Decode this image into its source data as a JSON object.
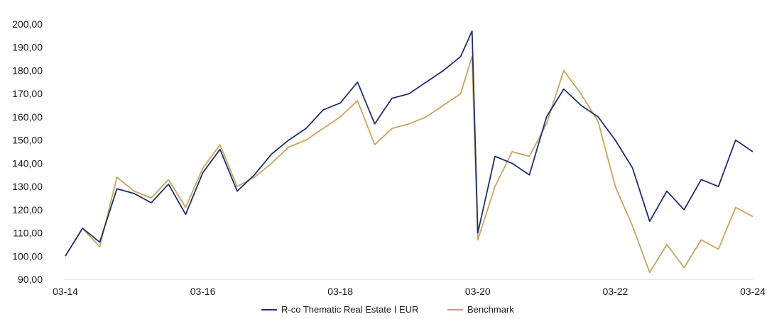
{
  "chart_data": {
    "type": "line",
    "title": "",
    "xlabel": "",
    "ylabel": "",
    "x_ticks": [
      "03-14",
      "03-16",
      "03-18",
      "03-20",
      "03-22",
      "03-24"
    ],
    "y_ticks": [
      "90,00",
      "100,00",
      "110,00",
      "120,00",
      "130,00",
      "140,00",
      "150,00",
      "160,00",
      "170,00",
      "180,00",
      "190,00",
      "200,00"
    ],
    "ylim": [
      90,
      200
    ],
    "xlim": [
      "2014-03",
      "2024-03"
    ],
    "grid": false,
    "legend_position": "bottom-center",
    "x": [
      "2014-03",
      "2014-06",
      "2014-09",
      "2014-12",
      "2015-03",
      "2015-06",
      "2015-09",
      "2015-12",
      "2016-03",
      "2016-06",
      "2016-09",
      "2016-12",
      "2017-03",
      "2017-06",
      "2017-09",
      "2017-12",
      "2018-03",
      "2018-06",
      "2018-09",
      "2018-12",
      "2019-03",
      "2019-06",
      "2019-09",
      "2019-12",
      "2020-02",
      "2020-03",
      "2020-06",
      "2020-09",
      "2020-12",
      "2021-03",
      "2021-06",
      "2021-09",
      "2021-12",
      "2022-03",
      "2022-06",
      "2022-09",
      "2022-12",
      "2023-03",
      "2023-06",
      "2023-09",
      "2023-12",
      "2024-03"
    ],
    "series": [
      {
        "name": "R-co Thematic Real Estate I EUR",
        "color": "#1f2f6e",
        "values": [
          100,
          112,
          106,
          129,
          127,
          123,
          131,
          118,
          136,
          146,
          128,
          135,
          144,
          150,
          155,
          163,
          166,
          175,
          157,
          168,
          170,
          175,
          180,
          186,
          197,
          110,
          143,
          140,
          135,
          160,
          172,
          165,
          160,
          150,
          138,
          115,
          128,
          120,
          133,
          130,
          150,
          145
        ]
      },
      {
        "name": "Benchmark",
        "color": "#c9a45f",
        "values": [
          100,
          112,
          104,
          134,
          128,
          125,
          133,
          121,
          138,
          148,
          130,
          134,
          140,
          147,
          150,
          155,
          160,
          167,
          148,
          155,
          157,
          160,
          165,
          170,
          186,
          107,
          130,
          145,
          143,
          157,
          180,
          170,
          158,
          130,
          113,
          93,
          105,
          95,
          107,
          103,
          121,
          117
        ]
      }
    ]
  }
}
